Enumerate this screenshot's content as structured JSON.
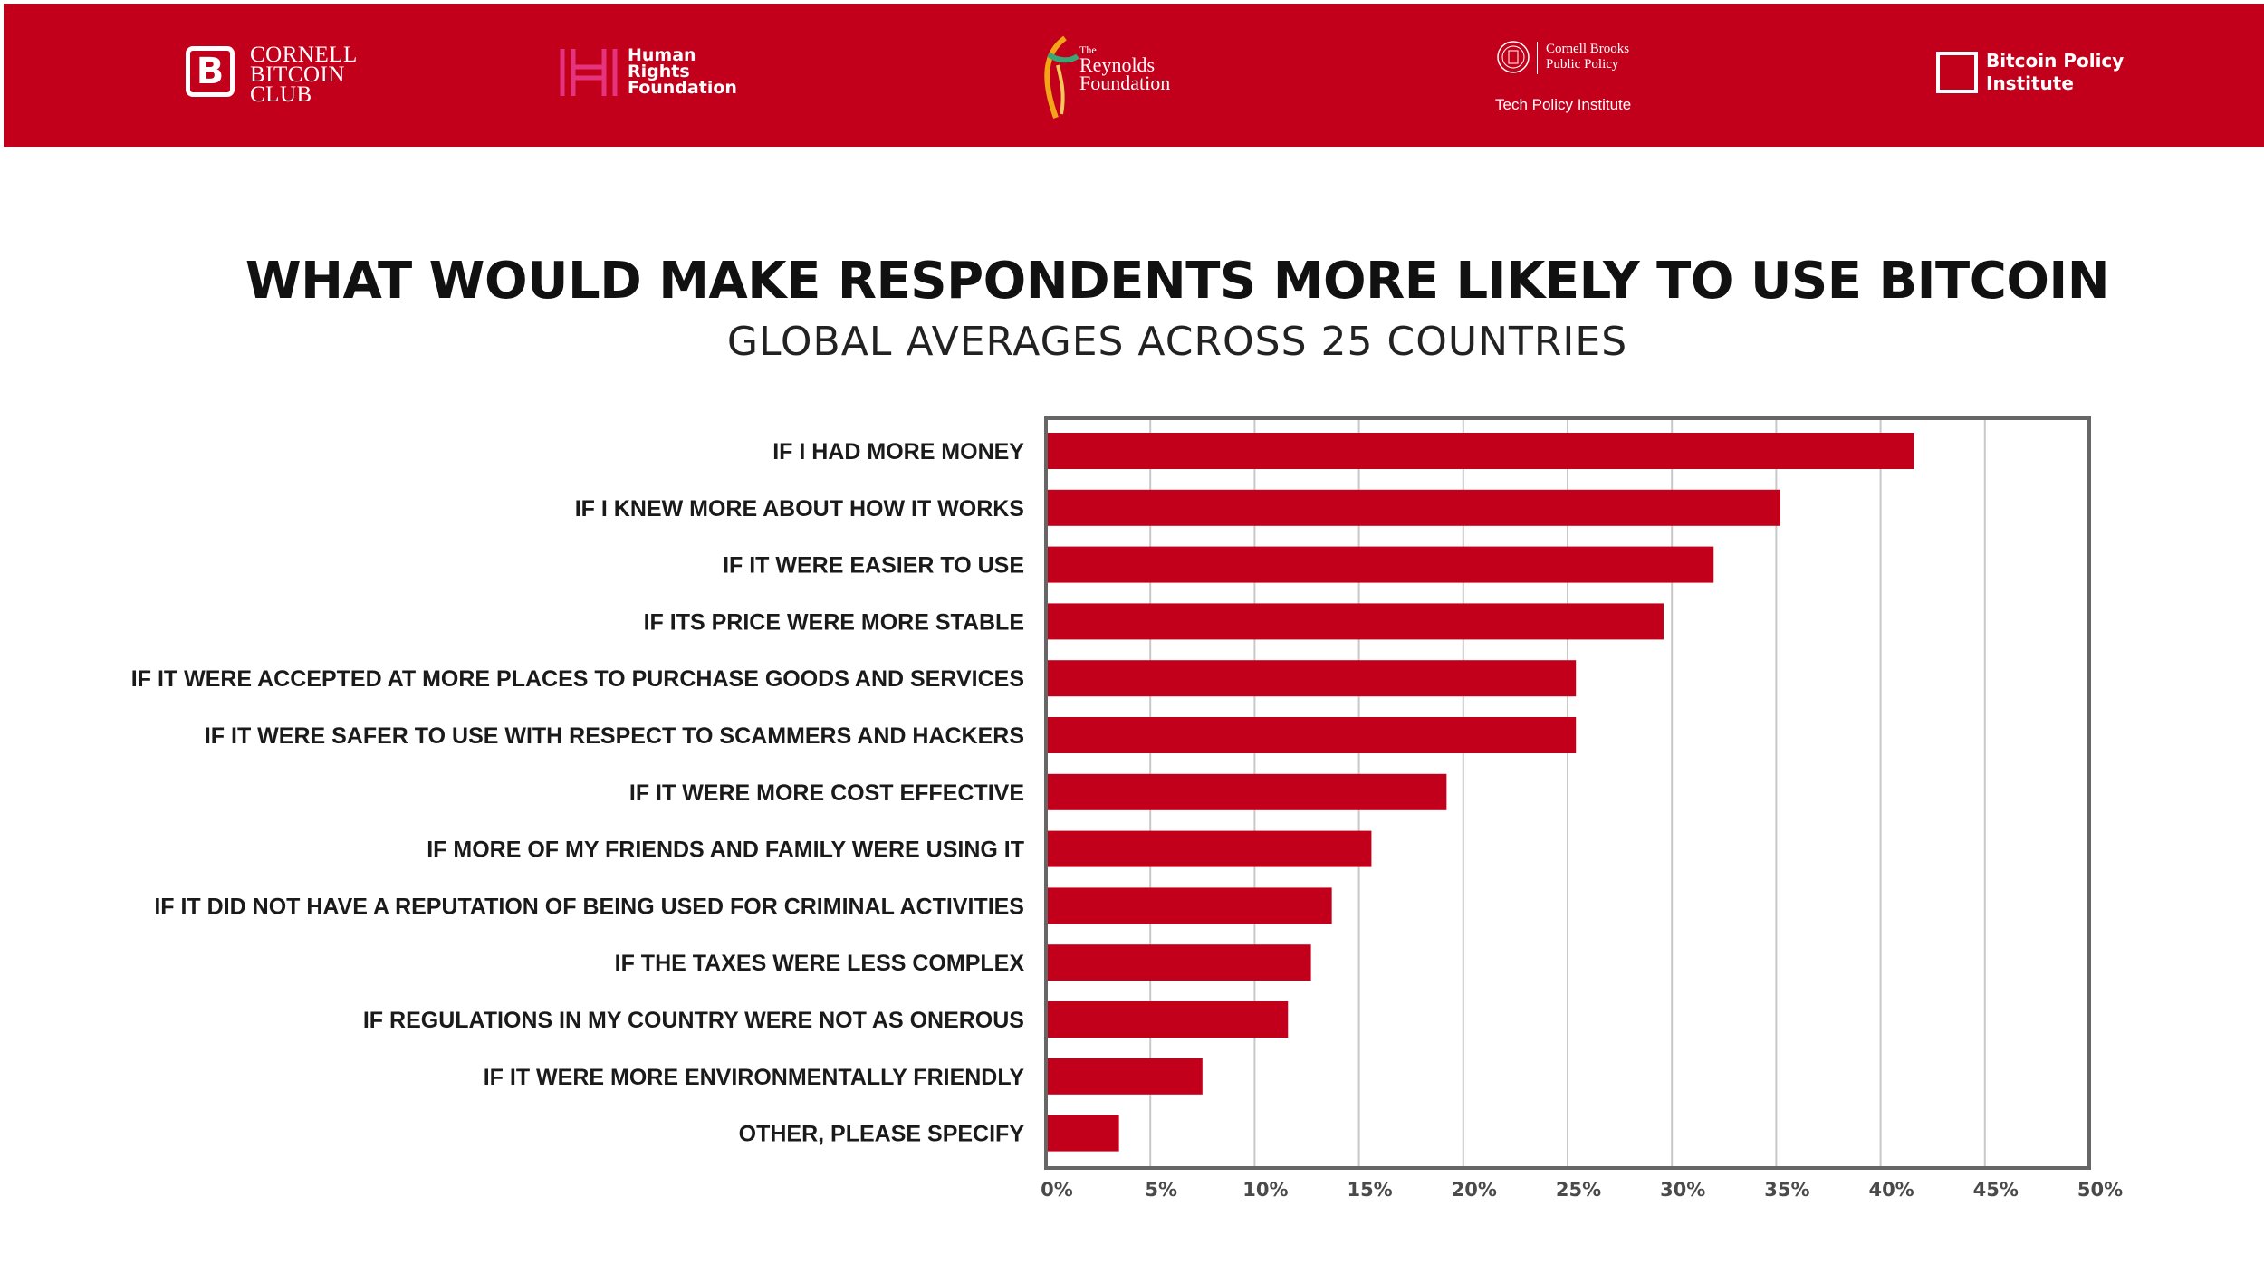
{
  "header": {
    "background_color": "#c2001b",
    "logos": {
      "cornell_bitcoin_club": {
        "icon": "bitcoin-icon",
        "badge": "B",
        "text": "CORNELL\nBITCOIN\nCLUB"
      },
      "human_rights_foundation": {
        "icon": "hrf-icon",
        "text": "Human\nRights\nFoundation"
      },
      "reynolds_foundation": {
        "icon": "reynolds-icon",
        "prefix": "The",
        "text": "Reynolds\nFoundation"
      },
      "cornell_brooks": {
        "icon": "cornell-seal-icon",
        "text": "Cornell Brooks\nPublic Policy",
        "subtext": "Tech Policy Institute"
      },
      "bitcoin_policy_institute": {
        "icon": "bpi-square-icon",
        "text": "Bitcoin Policy\nInstitute"
      }
    }
  },
  "chart_data": {
    "type": "bar",
    "orientation": "horizontal",
    "title": "WHAT WOULD MAKE RESPONDENTS MORE LIKELY TO USE BITCOIN",
    "subtitle": "GLOBAL AVERAGES ACROSS 25 COUNTRIES",
    "xlabel": "",
    "ylabel": "",
    "xlim": [
      0,
      50
    ],
    "x_ticks": [
      0,
      5,
      10,
      15,
      20,
      25,
      30,
      35,
      40,
      45,
      50
    ],
    "x_tick_labels": [
      "0%",
      "5%",
      "10%",
      "15%",
      "20%",
      "25%",
      "30%",
      "35%",
      "40%",
      "45%",
      "50%"
    ],
    "grid": true,
    "bar_color": "#c2001b",
    "categories": [
      "IF I HAD MORE MONEY",
      "IF I KNEW MORE ABOUT HOW IT WORKS",
      "IF IT WERE EASIER TO USE",
      "IF ITS PRICE WERE MORE STABLE",
      "IF IT WERE ACCEPTED AT MORE PLACES TO PURCHASE GOODS AND SERVICES",
      "IF IT WERE SAFER TO USE WITH RESPECT TO SCAMMERS AND HACKERS",
      "IF IT WERE MORE COST EFFECTIVE",
      "IF MORE OF MY FRIENDS AND FAMILY WERE USING IT",
      "IF IT DID NOT HAVE A REPUTATION OF BEING USED FOR CRIMINAL ACTIVITIES",
      "IF THE TAXES WERE LESS COMPLEX",
      "IF REGULATIONS IN MY COUNTRY WERE NOT AS ONEROUS",
      "IF IT WERE MORE ENVIRONMENTALLY FRIENDLY",
      "OTHER, PLEASE SPECIFY"
    ],
    "values": [
      41.6,
      35.2,
      32.0,
      29.6,
      25.4,
      25.4,
      19.2,
      15.6,
      13.7,
      12.7,
      11.6,
      7.5,
      3.5
    ]
  }
}
